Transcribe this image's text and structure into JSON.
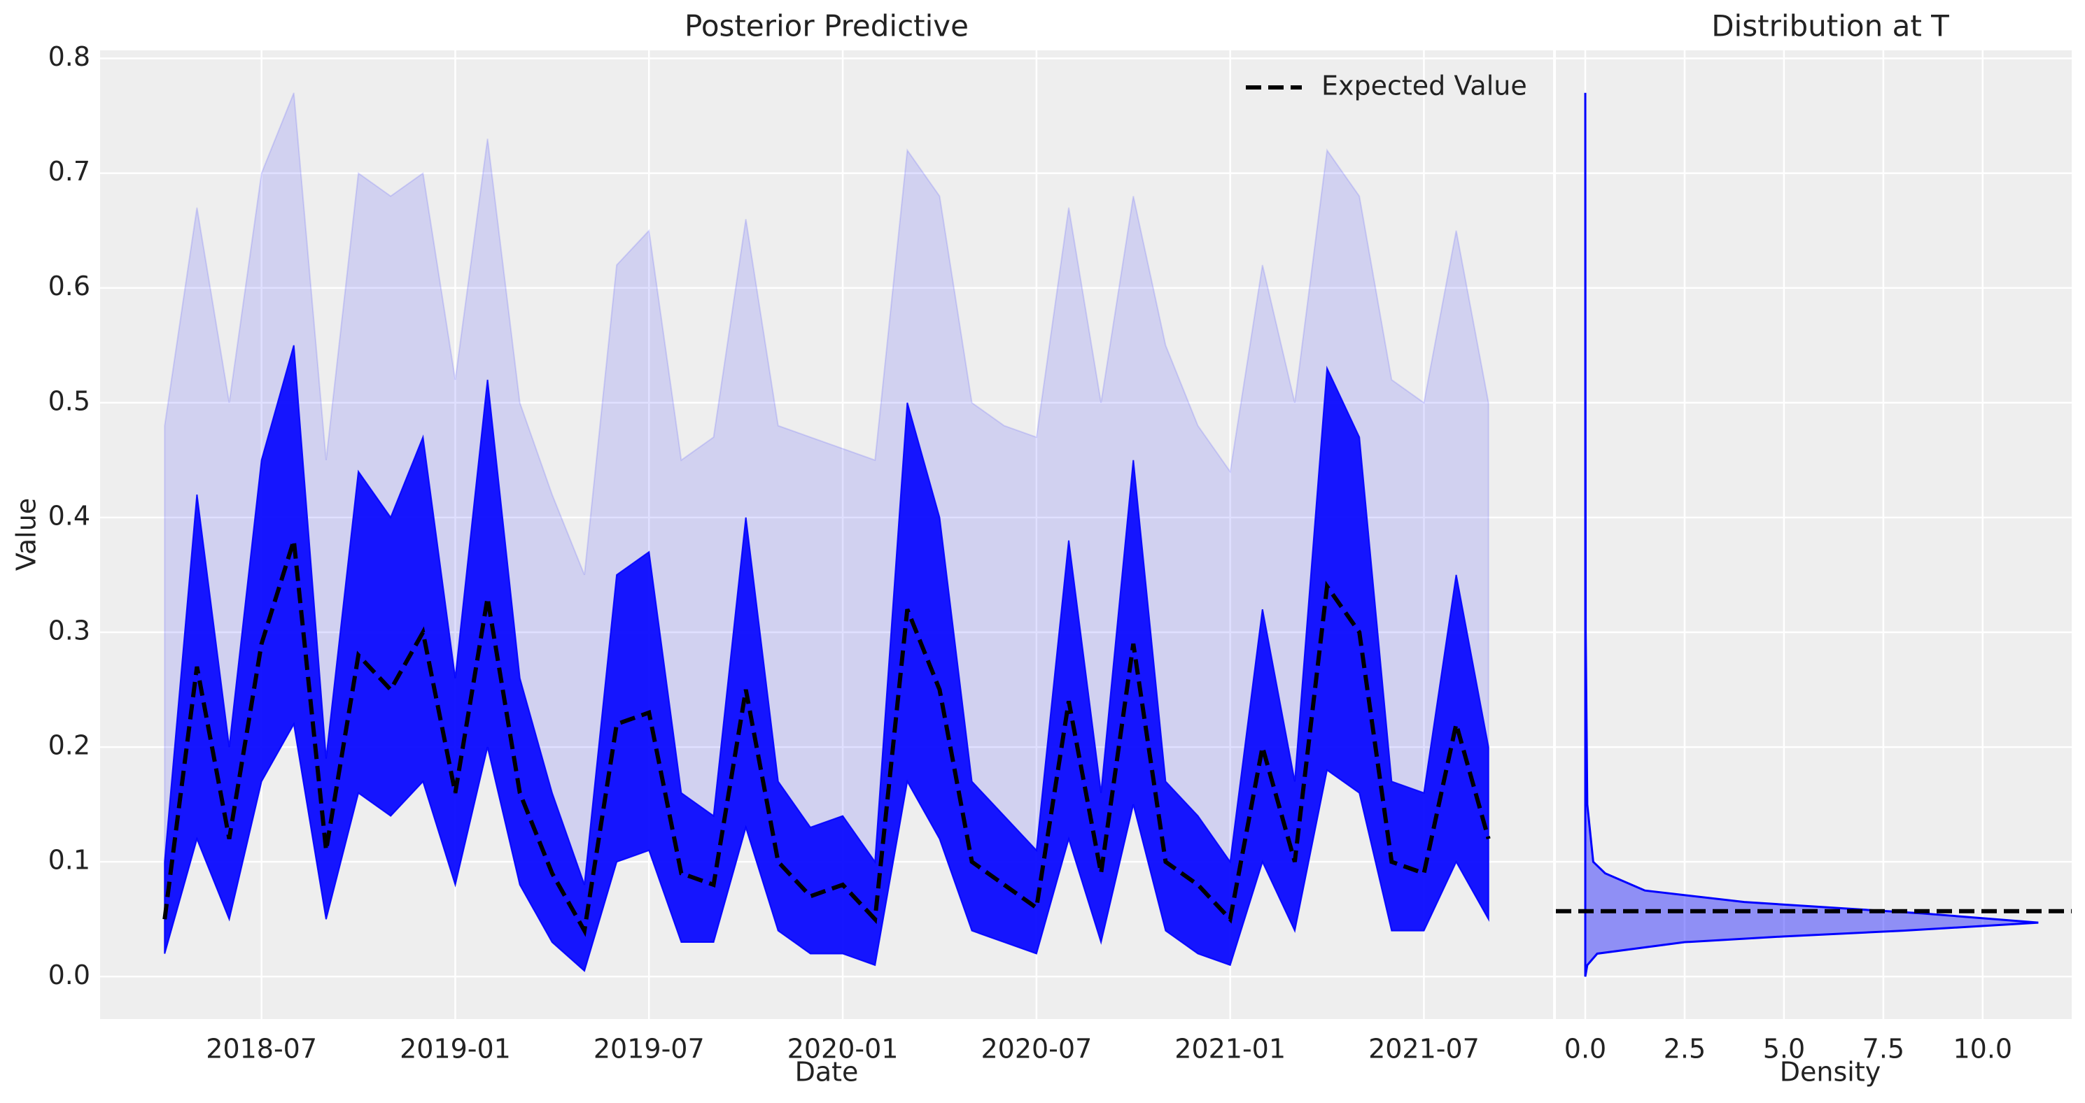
{
  "chart_data": [
    {
      "type": "line",
      "title": "Posterior Predictive",
      "xlabel": "Date",
      "ylabel": "Value",
      "x": [
        "2018-04",
        "2018-05",
        "2018-06",
        "2018-07",
        "2018-08",
        "2018-09",
        "2018-10",
        "2018-11",
        "2018-12",
        "2019-01",
        "2019-02",
        "2019-03",
        "2019-04",
        "2019-05",
        "2019-06",
        "2019-07",
        "2019-08",
        "2019-09",
        "2019-10",
        "2019-11",
        "2019-12",
        "2020-01",
        "2020-02",
        "2020-03",
        "2020-04",
        "2020-05",
        "2020-06",
        "2020-07",
        "2020-08",
        "2020-09",
        "2020-10",
        "2020-11",
        "2020-12",
        "2021-01",
        "2021-02",
        "2021-03",
        "2021-04",
        "2021-05",
        "2021-06",
        "2021-07",
        "2021-08",
        "2021-09"
      ],
      "series": [
        {
          "name": "Expected Value",
          "color": "#000000",
          "dashed": true,
          "values": [
            0.05,
            0.27,
            0.12,
            0.29,
            0.38,
            0.11,
            0.28,
            0.25,
            0.3,
            0.16,
            0.33,
            0.16,
            0.09,
            0.04,
            0.22,
            0.23,
            0.09,
            0.08,
            0.25,
            0.1,
            0.07,
            0.08,
            0.05,
            0.32,
            0.25,
            0.1,
            0.08,
            0.06,
            0.24,
            0.09,
            0.29,
            0.1,
            0.08,
            0.05,
            0.2,
            0.1,
            0.34,
            0.3,
            0.1,
            0.09,
            0.22,
            0.12
          ]
        }
      ],
      "band": {
        "color": "#0000ff",
        "lower": [
          0.02,
          0.12,
          0.05,
          0.17,
          0.22,
          0.05,
          0.16,
          0.14,
          0.17,
          0.08,
          0.2,
          0.08,
          0.03,
          0.005,
          0.1,
          0.11,
          0.03,
          0.03,
          0.13,
          0.04,
          0.02,
          0.02,
          0.01,
          0.17,
          0.12,
          0.04,
          0.03,
          0.02,
          0.12,
          0.03,
          0.15,
          0.04,
          0.02,
          0.01,
          0.1,
          0.04,
          0.18,
          0.16,
          0.04,
          0.04,
          0.1,
          0.05
        ],
        "upper": [
          0.1,
          0.42,
          0.2,
          0.45,
          0.55,
          0.19,
          0.44,
          0.4,
          0.47,
          0.26,
          0.52,
          0.26,
          0.16,
          0.08,
          0.35,
          0.37,
          0.16,
          0.14,
          0.4,
          0.17,
          0.13,
          0.14,
          0.1,
          0.5,
          0.4,
          0.17,
          0.14,
          0.11,
          0.38,
          0.16,
          0.45,
          0.17,
          0.14,
          0.1,
          0.32,
          0.17,
          0.53,
          0.47,
          0.17,
          0.16,
          0.35,
          0.2
        ],
        "outer": [
          0.48,
          0.67,
          0.5,
          0.7,
          0.77,
          0.45,
          0.7,
          0.68,
          0.7,
          0.52,
          0.73,
          0.5,
          0.42,
          0.35,
          0.62,
          0.65,
          0.45,
          0.47,
          0.66,
          0.48,
          0.47,
          0.46,
          0.45,
          0.72,
          0.68,
          0.5,
          0.48,
          0.47,
          0.67,
          0.5,
          0.68,
          0.55,
          0.48,
          0.44,
          0.62,
          0.5,
          0.72,
          0.68,
          0.52,
          0.5,
          0.65,
          0.5
        ]
      },
      "xlim": [
        "2018-02",
        "2021-11"
      ],
      "xticks": [
        "2018-07",
        "2019-01",
        "2019-07",
        "2020-01",
        "2020-07",
        "2021-01",
        "2021-07"
      ],
      "ylim": [
        -0.037,
        0.807
      ],
      "yticks": [
        {
          "value": 0,
          "label": "0.0"
        },
        0.1,
        0.2,
        0.3,
        0.4,
        0.5,
        0.6,
        0.7,
        0.8
      ],
      "grid": true,
      "legend": "upper right"
    },
    {
      "type": "density",
      "title": "Distribution at T",
      "xlabel": "Density",
      "color": "#0000ff",
      "y": [
        0.0,
        0.01,
        0.02,
        0.03,
        0.035,
        0.04,
        0.047,
        0.055,
        0.065,
        0.075,
        0.09,
        0.1,
        0.15,
        0.3,
        0.5,
        0.77
      ],
      "values": [
        0,
        0.05,
        0.3,
        2.5,
        5,
        8,
        11.4,
        8.5,
        4,
        1.5,
        0.5,
        0.2,
        0.05,
        0.01,
        0.005,
        0
      ],
      "expected_value": 0.057,
      "xlim": [
        -0.74,
        12.24
      ],
      "xticks": [
        {
          "value": 0,
          "label": "0.0"
        },
        2.5,
        {
          "value": 5,
          "label": "5.0"
        },
        7.5,
        {
          "value": 10,
          "label": "10.0"
        }
      ],
      "ylim": [
        -0.037,
        0.807
      ],
      "yticks": [
        0,
        0.1,
        0.2,
        0.3,
        0.4,
        0.5,
        0.6,
        0.7,
        0.8
      ],
      "grid": true
    }
  ]
}
